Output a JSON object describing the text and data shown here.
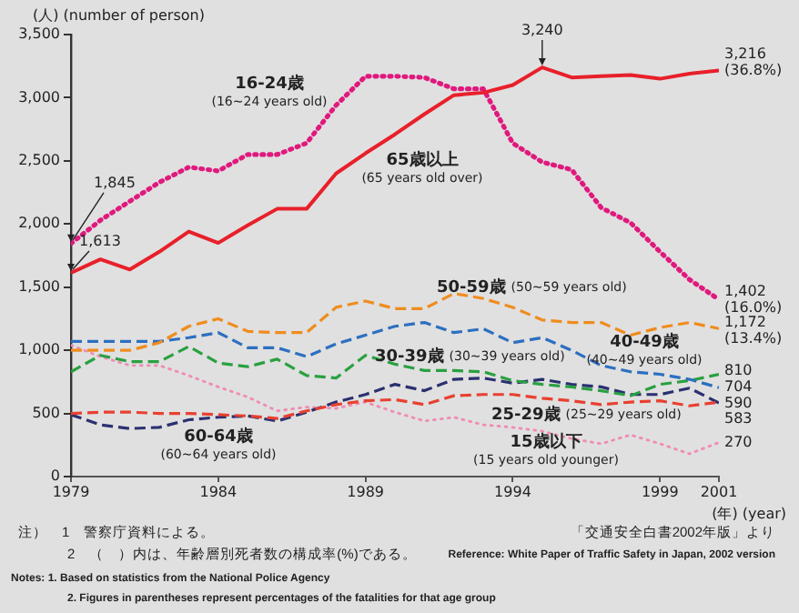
{
  "chart_data": {
    "type": "line",
    "ylabel": "(人) (number of person)",
    "xlabel": "(年) (year)",
    "x": [
      1979,
      1980,
      1981,
      1982,
      1983,
      1984,
      1985,
      1986,
      1987,
      1988,
      1989,
      1990,
      1991,
      1992,
      1993,
      1994,
      1995,
      1996,
      1997,
      1998,
      1999,
      2000,
      2001
    ],
    "xlim": [
      1979,
      2001
    ],
    "xticks": [
      1979,
      1984,
      1989,
      1994,
      1999,
      2001
    ],
    "ylim": [
      0,
      3500
    ],
    "yticks": [
      {
        "value": 0,
        "label": "0"
      },
      {
        "value": 500,
        "label": "500"
      },
      {
        "value": 1000,
        "label": "1,000"
      },
      {
        "value": 1500,
        "label": "1,500"
      },
      {
        "value": 2000,
        "label": "2,000"
      },
      {
        "value": 2500,
        "label": "2,500"
      },
      {
        "value": 3000,
        "label": "3,000"
      },
      {
        "value": 3500,
        "label": "3,500"
      }
    ],
    "grid": false,
    "legend": false,
    "marker": "none",
    "series": [
      {
        "name": "65歳以上 (65 years old over)",
        "color": "#e8202a",
        "line_style": "solid",
        "values": [
          1613,
          1720,
          1640,
          1780,
          1940,
          1850,
          1990,
          2120,
          2120,
          2400,
          2560,
          2710,
          2870,
          3020,
          3040,
          3100,
          3240,
          3160,
          3170,
          3180,
          3150,
          3190,
          3216
        ],
        "value_labels": [
          "1,613",
          null,
          null,
          null,
          null,
          null,
          null,
          null,
          null,
          null,
          null,
          null,
          null,
          null,
          null,
          null,
          "3,240",
          null,
          null,
          null,
          null,
          null,
          "3,216 (36.8%)"
        ]
      },
      {
        "name": "16-24歳 (16~24 years old)",
        "color": "#e0197d",
        "line_style": "dotted",
        "values": [
          1845,
          2030,
          2180,
          2330,
          2450,
          2420,
          2550,
          2550,
          2640,
          2940,
          3170,
          3170,
          3160,
          3070,
          3070,
          2640,
          2490,
          2430,
          2130,
          2010,
          1780,
          1560,
          1402
        ],
        "value_labels": [
          "1,845",
          null,
          null,
          null,
          null,
          null,
          null,
          null,
          null,
          null,
          null,
          null,
          null,
          null,
          null,
          null,
          null,
          null,
          null,
          null,
          null,
          null,
          "1,402 (16.0%)"
        ]
      },
      {
        "name": "50-59歳 (50~59 years old)",
        "color": "#f08c1e",
        "line_style": "dashed",
        "values": [
          1000,
          1000,
          1000,
          1060,
          1190,
          1250,
          1150,
          1140,
          1140,
          1340,
          1390,
          1330,
          1330,
          1450,
          1410,
          1340,
          1240,
          1220,
          1220,
          1120,
          1180,
          1220,
          1172
        ],
        "value_labels": [
          null,
          null,
          null,
          null,
          null,
          null,
          null,
          null,
          null,
          null,
          null,
          null,
          null,
          null,
          null,
          null,
          null,
          null,
          null,
          null,
          null,
          null,
          "1,172 (13.4%)"
        ]
      },
      {
        "name": "40-49歳 (40~49 years old)",
        "color": "#2c6fc0",
        "line_style": "dashed",
        "values": [
          1070,
          1070,
          1070,
          1070,
          1100,
          1140,
          1020,
          1020,
          950,
          1050,
          1120,
          1190,
          1220,
          1140,
          1170,
          1060,
          1100,
          1000,
          880,
          830,
          810,
          770,
          704
        ],
        "value_labels": [
          null,
          null,
          null,
          null,
          null,
          null,
          null,
          null,
          null,
          null,
          null,
          null,
          null,
          null,
          null,
          null,
          null,
          null,
          null,
          null,
          null,
          null,
          "704"
        ]
      },
      {
        "name": "30-39歳 (30~39 years old)",
        "color": "#2aa040",
        "line_style": "dashed",
        "values": [
          830,
          960,
          910,
          910,
          1030,
          900,
          870,
          930,
          800,
          780,
          960,
          890,
          840,
          840,
          830,
          760,
          730,
          710,
          680,
          640,
          730,
          760,
          810
        ],
        "value_labels": [
          null,
          null,
          null,
          null,
          null,
          null,
          null,
          null,
          null,
          null,
          null,
          null,
          null,
          null,
          null,
          null,
          null,
          null,
          null,
          null,
          null,
          null,
          "810"
        ]
      },
      {
        "name": "25-29歳 (25~29 years old)",
        "color": "#e84030",
        "line_style": "dashed",
        "values": [
          500,
          510,
          510,
          500,
          500,
          490,
          480,
          460,
          520,
          570,
          600,
          610,
          570,
          640,
          650,
          650,
          620,
          600,
          570,
          590,
          600,
          560,
          590
        ],
        "value_labels": [
          null,
          null,
          null,
          null,
          null,
          null,
          null,
          null,
          null,
          null,
          null,
          null,
          null,
          null,
          null,
          null,
          null,
          null,
          null,
          null,
          null,
          null,
          "590"
        ]
      },
      {
        "name": "60-64歳 (60~64 years old)",
        "color": "#2a3070",
        "line_style": "dashed",
        "values": [
          490,
          410,
          380,
          390,
          450,
          470,
          480,
          440,
          510,
          590,
          650,
          730,
          680,
          770,
          780,
          740,
          770,
          730,
          710,
          650,
          650,
          700,
          583
        ],
        "value_labels": [
          null,
          null,
          null,
          null,
          null,
          null,
          null,
          null,
          null,
          null,
          null,
          null,
          null,
          null,
          null,
          null,
          null,
          null,
          null,
          null,
          null,
          null,
          "583"
        ]
      },
      {
        "name": "15歳以下 (15 years old younger)",
        "color": "#f08cb4",
        "line_style": "dotted",
        "values": [
          1040,
          950,
          880,
          880,
          800,
          710,
          630,
          520,
          550,
          540,
          590,
          510,
          440,
          470,
          410,
          390,
          360,
          300,
          260,
          330,
          260,
          180,
          270
        ],
        "value_labels": [
          null,
          null,
          null,
          null,
          null,
          null,
          null,
          null,
          null,
          null,
          null,
          null,
          null,
          null,
          null,
          null,
          null,
          null,
          null,
          null,
          null,
          null,
          "270"
        ]
      }
    ],
    "annotations": [
      "注）　1　警察庁資料による。",
      "「交通安全白書2002年版」より",
      "2　（　）内は、年齢層別死者数の構成率(%)である。",
      "Reference: White Paper of Traffic Safety in Japan, 2002 version",
      "Notes: 1. Based on statistics from the National Police Agency",
      "2. Figures in parentheses represent percentages of the fatalities for that age group"
    ]
  }
}
